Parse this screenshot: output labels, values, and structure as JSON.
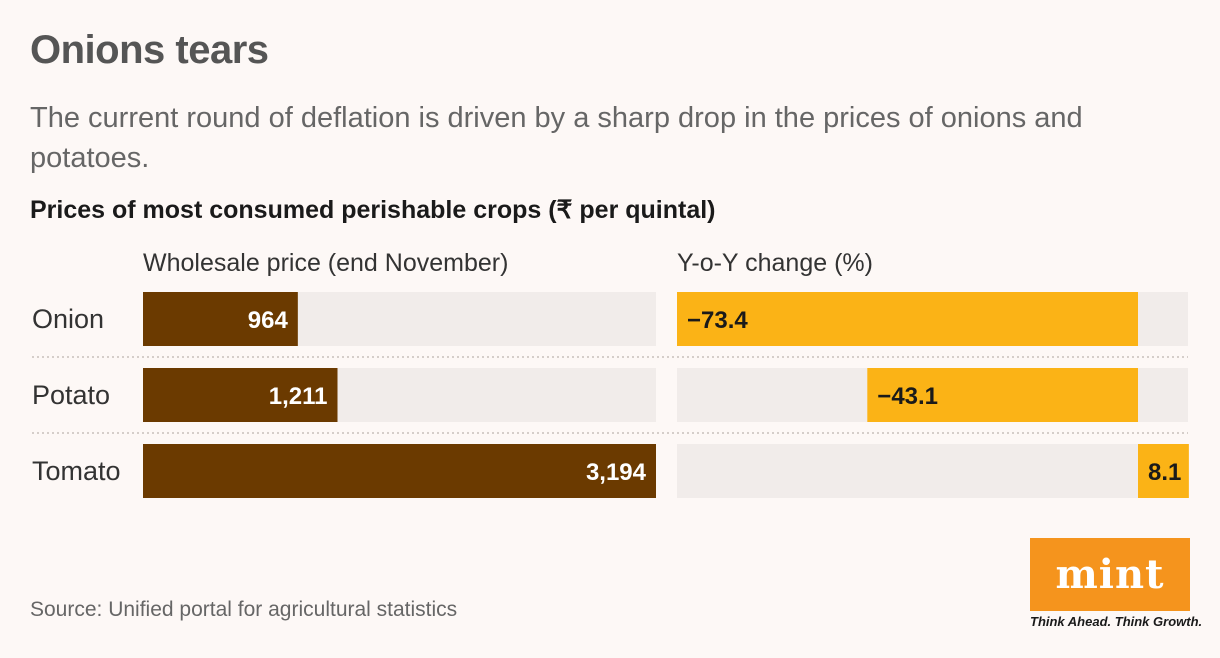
{
  "title": "Onions tears",
  "subtitle": "The current round of deflation is driven by a sharp drop in the prices of onions and potatoes.",
  "source": "Source: Unified portal for agricultural statistics",
  "logo": {
    "wordmark": "mint",
    "tagline": "Think Ahead. Think Growth."
  },
  "colors": {
    "background": "#fdf8f6",
    "wholesale_bar": "#6b3a00",
    "yoy_bar": "#fbb316",
    "track": "#f1ecea",
    "logo": "#f5941d"
  },
  "chart_data": {
    "type": "bar",
    "title": "Prices of most consumed perishable crops (₹ per quintal)",
    "categories": [
      "Onion",
      "Potato",
      "Tomato"
    ],
    "series": [
      {
        "name": "Wholesale price (end November)",
        "values": [
          964,
          1211,
          3194
        ],
        "labels": [
          "964",
          "1,211",
          "3,194"
        ],
        "xlim": [
          0,
          3194
        ]
      },
      {
        "name": "Y-o-Y change (%)",
        "values": [
          -73.4,
          -43.1,
          8.1
        ],
        "labels": [
          "−73.4",
          "−43.1",
          "8.1"
        ],
        "xlim": [
          -73.4,
          8.1
        ]
      }
    ]
  }
}
